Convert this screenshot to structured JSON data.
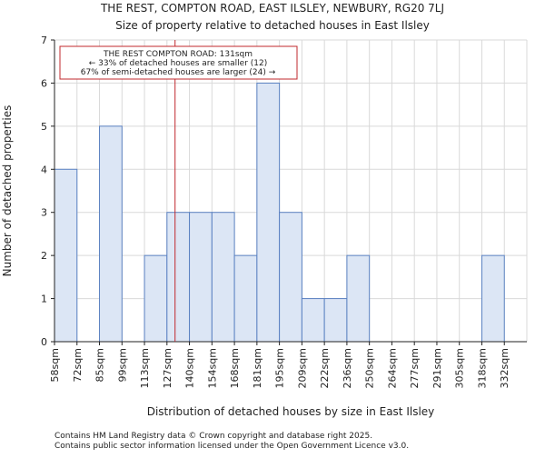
{
  "chart_data": {
    "type": "bar",
    "title": "THE REST, COMPTON ROAD, EAST ILSLEY, NEWBURY, RG20 7LJ",
    "subtitle": "Size of property relative to detached houses in East Ilsley",
    "xlabel": "Distribution of detached houses by size in East Ilsley",
    "ylabel": "Number of detached properties",
    "categories": [
      "58sqm",
      "72sqm",
      "85sqm",
      "99sqm",
      "113sqm",
      "127sqm",
      "140sqm",
      "154sqm",
      "168sqm",
      "181sqm",
      "195sqm",
      "209sqm",
      "222sqm",
      "236sqm",
      "250sqm",
      "264sqm",
      "277sqm",
      "291sqm",
      "305sqm",
      "318sqm",
      "332sqm"
    ],
    "values": [
      4,
      0,
      5,
      0,
      2,
      3,
      3,
      3,
      2,
      6,
      3,
      1,
      1,
      2,
      0,
      0,
      0,
      0,
      0,
      2,
      0
    ],
    "ylim": [
      0,
      7
    ],
    "yticks": [
      0,
      1,
      2,
      3,
      4,
      5,
      6,
      7
    ],
    "grid": true,
    "marker": {
      "category_index": 5,
      "offset": 0.36,
      "value_sqm": 131
    },
    "annotation": {
      "line1": "THE REST COMPTON ROAD: 131sqm",
      "line2": "← 33% of detached houses are smaller (12)",
      "line3": "67% of semi-detached houses are larger (24) →"
    },
    "colors": {
      "bar_fill": "#dce6f5",
      "bar_edge": "#5b82c2",
      "marker": "#c0282d"
    }
  },
  "footer": {
    "line1": "Contains HM Land Registry data © Crown copyright and database right 2025.",
    "line2": "Contains public sector information licensed under the Open Government Licence v3.0."
  }
}
